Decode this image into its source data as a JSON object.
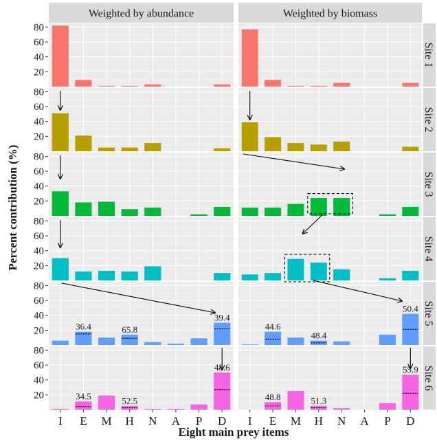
{
  "chart_data": {
    "type": "bar",
    "xlabel": "Eight main prey items",
    "ylabel": "Percent contribution (%)",
    "categories": [
      "I",
      "E",
      "M",
      "H",
      "N",
      "A",
      "P",
      "D"
    ],
    "ylim": [
      0,
      85
    ],
    "yticks": [
      20,
      40,
      60,
      80
    ],
    "grid": true,
    "columns": [
      "Weighted by abundance",
      "Weighted by biomass"
    ],
    "sites": [
      {
        "name": "Site 1",
        "color": "#F8766D",
        "abundance": [
          82,
          9,
          1,
          1,
          3,
          0,
          0,
          3
        ],
        "biomass": [
          77,
          9,
          1,
          1,
          5,
          0,
          0,
          5
        ]
      },
      {
        "name": "Site 2",
        "color": "#B79F00",
        "abundance": [
          51,
          21,
          5,
          5,
          11,
          0,
          0,
          4
        ],
        "biomass": [
          39,
          19,
          11,
          9,
          13,
          0,
          0,
          6
        ]
      },
      {
        "name": "Site 3",
        "color": "#00BA38",
        "abundance": [
          33,
          18,
          19,
          9,
          11,
          0,
          2,
          12
        ],
        "biomass": [
          11,
          11,
          16,
          24,
          24,
          0,
          2,
          12
        ]
      },
      {
        "name": "Site 4",
        "color": "#00BFC4",
        "abundance": [
          30,
          12,
          13,
          12,
          19,
          0,
          0,
          10
        ],
        "biomass": [
          8,
          10,
          29,
          24,
          15,
          0,
          3,
          13
        ]
      },
      {
        "name": "Site 5",
        "color": "#619CFF",
        "abundance": [
          6,
          18,
          10,
          14,
          4,
          2,
          9,
          30
        ],
        "biomass": [
          1,
          18,
          10,
          6,
          5,
          0,
          14,
          42
        ],
        "labels_abundance": [
          {
            "cat": 1,
            "text": "36.4",
            "dotted": 15
          },
          {
            "cat": 3,
            "text": "65.8",
            "dotted": 9
          },
          {
            "cat": 7,
            "text": "39.4",
            "dotted": 22
          }
        ],
        "labels_biomass": [
          {
            "cat": 1,
            "text": "44.6",
            "dotted": 8
          },
          {
            "cat": 3,
            "text": "48.4",
            "dotted": 3
          },
          {
            "cat": 7,
            "text": "50.4",
            "dotted": 21
          }
        ]
      },
      {
        "name": "Site 6",
        "color": "#F564E3",
        "abundance": [
          1,
          11,
          19,
          5,
          1,
          1,
          7,
          50
        ],
        "biomass": [
          0,
          10,
          25,
          5,
          2,
          0,
          9,
          47
        ],
        "labels_abundance": [
          {
            "cat": 1,
            "text": "34.5",
            "dotted": 4
          },
          {
            "cat": 3,
            "text": "52.5",
            "dotted": 3
          },
          {
            "cat": 7,
            "text": "48.6",
            "dotted": 27
          }
        ],
        "labels_biomass": [
          {
            "cat": 1,
            "text": "48.8",
            "dotted": 5
          },
          {
            "cat": 3,
            "text": "51.3",
            "dotted": 3
          },
          {
            "cat": 7,
            "text": "55.9",
            "dotted": 22
          }
        ]
      }
    ]
  }
}
